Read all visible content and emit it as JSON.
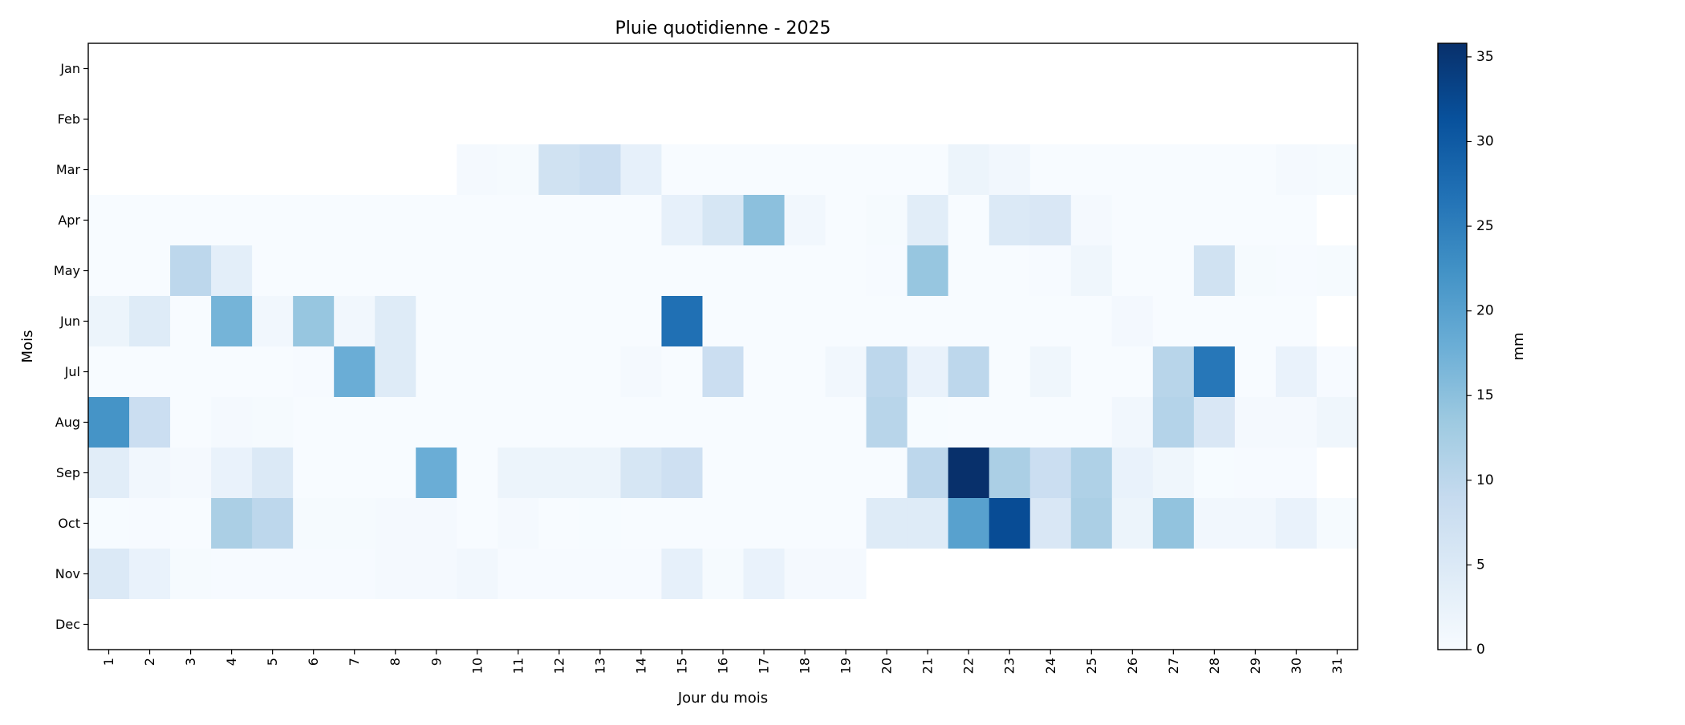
{
  "chart_data": {
    "type": "heatmap",
    "title": "Pluie quotidienne - 2025",
    "xlabel": "Jour du mois",
    "ylabel": "Mois",
    "colorbar_label": "mm",
    "colormap": "Blues",
    "colormap_stops": [
      "#f7fbff",
      "#deebf7",
      "#c6dbef",
      "#9ecae1",
      "#6baed6",
      "#4292c6",
      "#2171b5",
      "#08519c",
      "#08306b"
    ],
    "missing_color": "#ffffff",
    "vmin": 0,
    "vmax": 35.8,
    "colorbar_ticks": [
      0,
      5,
      10,
      15,
      20,
      25,
      30,
      35
    ],
    "x_categories": [
      "1",
      "2",
      "3",
      "4",
      "5",
      "6",
      "7",
      "8",
      "9",
      "10",
      "11",
      "12",
      "13",
      "14",
      "15",
      "16",
      "17",
      "18",
      "19",
      "20",
      "21",
      "22",
      "23",
      "24",
      "25",
      "26",
      "27",
      "28",
      "29",
      "30",
      "31"
    ],
    "y_categories": [
      "Jan",
      "Feb",
      "Mar",
      "Apr",
      "May",
      "Jun",
      "Jul",
      "Aug",
      "Sep",
      "Oct",
      "Nov",
      "Dec"
    ],
    "values": [
      [
        null,
        null,
        null,
        null,
        null,
        null,
        null,
        null,
        null,
        null,
        null,
        null,
        null,
        null,
        null,
        null,
        null,
        null,
        null,
        null,
        null,
        null,
        null,
        null,
        null,
        null,
        null,
        null,
        null,
        null,
        null
      ],
      [
        null,
        null,
        null,
        null,
        null,
        null,
        null,
        null,
        null,
        null,
        null,
        null,
        null,
        null,
        null,
        null,
        null,
        null,
        null,
        null,
        null,
        null,
        null,
        null,
        null,
        null,
        null,
        null,
        null,
        null,
        null
      ],
      [
        null,
        null,
        null,
        null,
        null,
        null,
        null,
        null,
        null,
        0.5,
        0.3,
        7,
        8,
        3,
        0,
        0,
        0,
        0,
        0,
        0,
        0,
        2,
        1,
        0,
        0,
        0,
        0,
        0,
        0,
        0.5,
        0.3
      ],
      [
        0,
        0,
        0,
        0,
        0,
        0,
        0,
        0,
        0,
        0,
        0,
        0,
        0,
        0,
        3,
        6,
        15,
        1,
        0,
        0.3,
        4,
        0,
        5,
        5.5,
        0.5,
        0,
        0,
        0,
        0,
        0,
        null
      ],
      [
        0,
        0,
        10,
        3.5,
        0,
        0,
        0,
        0,
        0,
        0,
        0,
        0,
        0,
        0,
        0,
        0,
        0,
        0,
        0,
        0.2,
        14,
        0,
        0,
        0.2,
        1.5,
        0,
        0,
        7,
        0.4,
        0.2,
        0.3
      ],
      [
        2,
        4.5,
        0,
        17,
        1,
        14,
        1,
        4.5,
        0,
        0,
        0,
        0,
        0,
        0,
        27,
        0,
        0,
        0,
        0,
        0,
        0,
        0,
        0,
        0,
        0,
        0.8,
        0,
        0,
        0,
        0,
        null
      ],
      [
        0,
        0,
        0,
        0,
        0,
        0.2,
        18,
        4.5,
        0,
        0,
        0,
        0,
        0,
        0.5,
        0,
        8,
        0,
        0,
        1,
        10,
        2.5,
        10,
        0,
        1.5,
        0,
        0,
        10.5,
        26,
        0,
        2.5,
        0.2
      ],
      [
        22,
        8,
        0,
        0.6,
        0.4,
        0,
        0,
        0,
        0,
        0,
        0,
        0,
        0,
        0,
        0,
        0,
        0,
        0,
        0,
        10.5,
        0.1,
        0,
        0,
        0,
        0,
        1,
        11,
        5.5,
        0.5,
        0.6,
        1.5
      ],
      [
        4,
        1,
        0.5,
        2.5,
        5,
        0,
        0,
        0,
        18,
        0,
        2,
        2,
        2,
        6,
        7.5,
        0,
        0,
        0,
        0,
        0,
        10,
        35.8,
        12,
        8,
        11.5,
        2.5,
        1.5,
        0.1,
        0.2,
        0.2,
        null
      ],
      [
        0.1,
        0.2,
        0,
        12,
        10,
        0.3,
        0.3,
        0.6,
        0.6,
        0,
        0.5,
        0,
        0.1,
        0,
        0,
        0,
        0,
        0,
        0,
        4.5,
        4.5,
        20,
        32,
        5.5,
        12,
        2,
        14.5,
        1,
        1,
        2.5,
        0.3
      ],
      [
        5,
        2.5,
        0.3,
        0.2,
        0.2,
        0.2,
        0.2,
        0.6,
        0.6,
        1,
        0.2,
        0.2,
        0.2,
        0.2,
        3,
        0.3,
        2.5,
        0.5,
        0.5,
        null,
        null,
        null,
        null,
        null,
        null,
        null,
        null,
        null,
        null,
        null,
        null
      ],
      [
        null,
        null,
        null,
        null,
        null,
        null,
        null,
        null,
        null,
        null,
        null,
        null,
        null,
        null,
        null,
        null,
        null,
        null,
        null,
        null,
        null,
        null,
        null,
        null,
        null,
        null,
        null,
        null,
        null,
        null,
        null
      ]
    ]
  }
}
